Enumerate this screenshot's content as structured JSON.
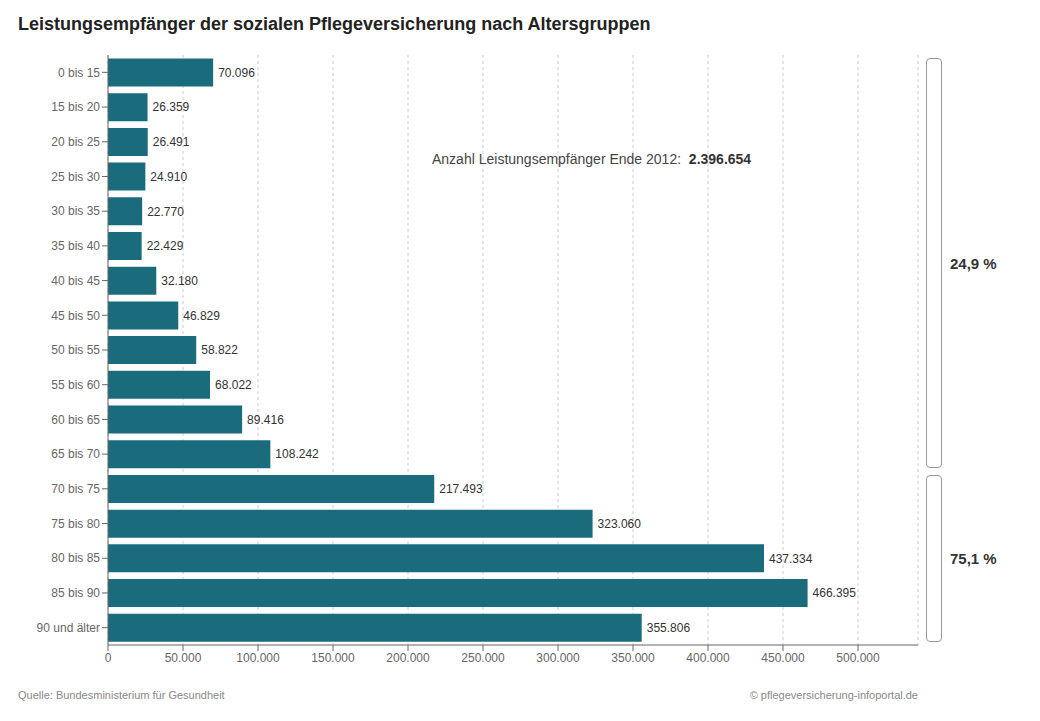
{
  "chart_data": {
    "type": "bar",
    "orientation": "horizontal",
    "title": "Leistungsempfänger der sozialen Pflegeversicherung nach Altersgruppen",
    "categories": [
      "0 bis 15",
      "15 bis 20",
      "20 bis 25",
      "25 bis 30",
      "30 bis 35",
      "35 bis 40",
      "40 bis 45",
      "45 bis 50",
      "50 bis 55",
      "55 bis 60",
      "60 bis 65",
      "65 bis 70",
      "70 bis 75",
      "75 bis 80",
      "80 bis 85",
      "85 bis 90",
      "90 und älter"
    ],
    "values": [
      70096,
      26359,
      26491,
      24910,
      22770,
      22429,
      32180,
      46829,
      58822,
      68022,
      89416,
      108242,
      217493,
      323060,
      437334,
      466395,
      355806
    ],
    "value_labels": [
      "70.096",
      "26.359",
      "26.491",
      "24.910",
      "22.770",
      "22.429",
      "32.180",
      "46.829",
      "58.822",
      "68.022",
      "89.416",
      "108.242",
      "217.493",
      "323.060",
      "437.334",
      "466.395",
      "355.806"
    ],
    "data_labels": true,
    "color": "#1a6b7c",
    "xlim": [
      0,
      540000
    ],
    "xticks": [
      0,
      {
        "value": 50000,
        "label": "50.000"
      },
      {
        "value": 100000,
        "label": "100.000"
      },
      {
        "value": 150000,
        "label": "150.000"
      },
      {
        "value": 200000,
        "label": "200.000"
      },
      {
        "value": 250000,
        "label": "250.000"
      },
      {
        "value": 300000,
        "label": "300.000"
      },
      {
        "value": 350000,
        "label": "350.000"
      },
      {
        "value": 400000,
        "label": "400.000"
      },
      {
        "value": 450000,
        "label": "450.000"
      },
      {
        "value": 500000,
        "label": "500.000"
      }
    ],
    "grid": true,
    "annotation": "Anzahl Leistungsempfänger Ende 2012:  ",
    "annotation_bold": "2.396.654",
    "groups": [
      {
        "label": "24,9 %",
        "from": "0 bis 15",
        "to": "65 bis 70"
      },
      {
        "label": "75,1 %",
        "from": "70 bis 75",
        "to": "90 und älter"
      }
    ],
    "source_left": "Quelle: Bundesministerium für Gesundheit",
    "source_right": "© pflegeversicherung-infoportal.de"
  }
}
